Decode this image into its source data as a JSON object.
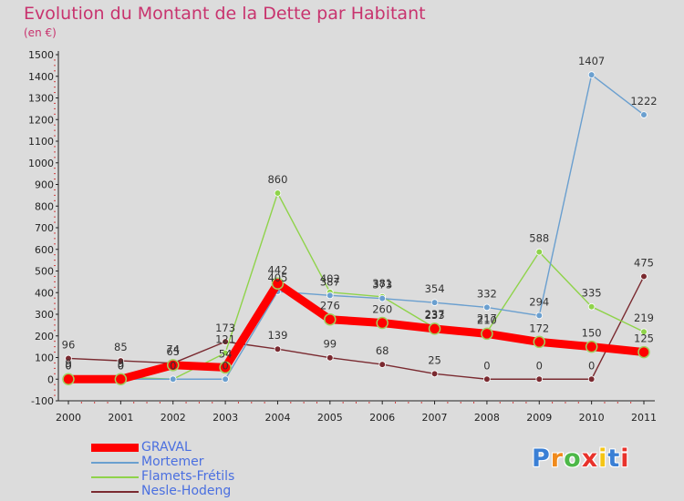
{
  "page": {
    "title": "Evolution du Montant de la Dette par Habitant",
    "unit": "(en €)"
  },
  "logo": {
    "text": "Proxiti",
    "colors": [
      "#3a7fd5",
      "#f08a1c",
      "#4db848",
      "#e8322b",
      "#f5c515",
      "#3a7fd5",
      "#e8322b"
    ]
  },
  "chart_data": {
    "type": "line",
    "title": "Evolution du Montant de la Dette par Habitant",
    "ylabel": "(en €)",
    "xlabel": "",
    "ylim": [
      -100,
      1500
    ],
    "yticks": [
      -100,
      0,
      100,
      200,
      300,
      400,
      500,
      600,
      700,
      800,
      900,
      1000,
      1100,
      1200,
      1300,
      1400,
      1500
    ],
    "x": [
      "2000",
      "2001",
      "2002",
      "2003",
      "2004",
      "2005",
      "2006",
      "2007",
      "2008",
      "2009",
      "2010",
      "2011"
    ],
    "grid": false,
    "legend_position": "bottom-left",
    "series": [
      {
        "name": "GRAVAL",
        "color": "#ff0000",
        "emphasis": "thick",
        "values": [
          0,
          0,
          65,
          54,
          442,
          276,
          260,
          233,
          210,
          172,
          150,
          125
        ]
      },
      {
        "name": "Mortemer",
        "color": "#6a9fcf",
        "values": [
          0,
          0,
          0,
          0,
          405,
          387,
          373,
          354,
          332,
          294,
          1407,
          1222
        ]
      },
      {
        "name": "Flamets-Frétils",
        "color": "#8fd34a",
        "values": [
          9,
          9,
          0,
          121,
          860,
          402,
          381,
          237,
          217,
          588,
          335,
          219
        ]
      },
      {
        "name": "Nesle-Hodeng",
        "color": "#7a2a30",
        "values": [
          96,
          85,
          74,
          173,
          139,
          99,
          68,
          25,
          0,
          0,
          0,
          475
        ]
      }
    ]
  }
}
